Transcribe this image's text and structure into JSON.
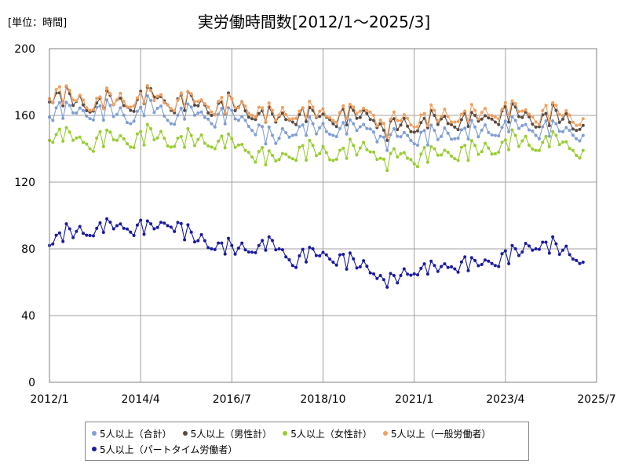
{
  "chart_data": {
    "type": "line",
    "title": "実労働時間数[2012/1～2025/3]",
    "unit_label": "[単位：時間]",
    "x_tick_labels": [
      "2012/1",
      "2014/4",
      "2016/7",
      "2018/10",
      "2021/1",
      "2023/4",
      "2025/7"
    ],
    "y_tick_labels": [
      "0",
      "40",
      "80",
      "120",
      "160",
      "200"
    ],
    "ylim": [
      0,
      200
    ],
    "x_start": "2012/1",
    "x_end": "2025/7",
    "grid": true,
    "legend_position": "bottom",
    "series": [
      {
        "name": "5人以上（合計）",
        "color": "#7f9ed4",
        "anchors": [
          [
            "2012/1",
            159
          ],
          [
            "2012/7",
            166
          ],
          [
            "2013/1",
            158
          ],
          [
            "2013/7",
            166
          ],
          [
            "2014/1",
            155
          ],
          [
            "2014/7",
            169
          ],
          [
            "2015/1",
            155
          ],
          [
            "2015/7",
            165
          ],
          [
            "2016/1",
            155
          ],
          [
            "2016/7",
            163
          ],
          [
            "2017/1",
            151
          ],
          [
            "2017/7",
            148
          ],
          [
            "2018/1",
            148
          ],
          [
            "2018/7",
            155
          ],
          [
            "2019/1",
            148
          ],
          [
            "2019/7",
            155
          ],
          [
            "2020/1",
            150
          ],
          [
            "2020/5",
            139
          ],
          [
            "2020/7",
            152
          ],
          [
            "2021/1",
            143
          ],
          [
            "2021/7",
            151
          ],
          [
            "2022/1",
            146
          ],
          [
            "2022/7",
            153
          ],
          [
            "2023/1",
            148
          ],
          [
            "2023/7",
            157
          ],
          [
            "2024/1",
            148
          ],
          [
            "2024/7",
            155
          ],
          [
            "2025/1",
            146
          ],
          [
            "2025/3",
            148
          ]
        ]
      },
      {
        "name": "5人以上（男性計）",
        "color": "#5b4a3f",
        "anchors": [
          [
            "2012/1",
            168
          ],
          [
            "2012/7",
            173
          ],
          [
            "2013/1",
            162
          ],
          [
            "2013/7",
            172
          ],
          [
            "2014/1",
            163
          ],
          [
            "2014/7",
            176
          ],
          [
            "2015/1",
            163
          ],
          [
            "2015/7",
            172
          ],
          [
            "2016/1",
            160
          ],
          [
            "2016/7",
            170
          ],
          [
            "2017/1",
            158
          ],
          [
            "2017/7",
            161
          ],
          [
            "2018/1",
            156
          ],
          [
            "2018/7",
            163
          ],
          [
            "2019/1",
            155
          ],
          [
            "2019/7",
            163
          ],
          [
            "2020/1",
            157
          ],
          [
            "2020/5",
            145
          ],
          [
            "2020/7",
            158
          ],
          [
            "2021/1",
            150
          ],
          [
            "2021/7",
            160
          ],
          [
            "2022/1",
            153
          ],
          [
            "2022/7",
            160
          ],
          [
            "2023/1",
            156
          ],
          [
            "2023/7",
            165
          ],
          [
            "2024/1",
            153
          ],
          [
            "2024/7",
            163
          ],
          [
            "2025/1",
            151
          ],
          [
            "2025/3",
            154
          ]
        ]
      },
      {
        "name": "5人以上（女性計）",
        "color": "#99cc33",
        "anchors": [
          [
            "2012/1",
            145
          ],
          [
            "2012/7",
            150
          ],
          [
            "2013/1",
            140
          ],
          [
            "2013/7",
            150
          ],
          [
            "2014/1",
            141
          ],
          [
            "2014/7",
            152
          ],
          [
            "2015/1",
            141
          ],
          [
            "2015/7",
            148
          ],
          [
            "2016/1",
            141
          ],
          [
            "2016/7",
            146
          ],
          [
            "2017/1",
            135
          ],
          [
            "2017/7",
            136
          ],
          [
            "2018/1",
            134
          ],
          [
            "2018/7",
            142
          ],
          [
            "2019/1",
            133
          ],
          [
            "2019/7",
            142
          ],
          [
            "2020/1",
            138
          ],
          [
            "2020/5",
            127
          ],
          [
            "2020/7",
            140
          ],
          [
            "2021/1",
            131
          ],
          [
            "2021/7",
            140
          ],
          [
            "2022/1",
            134
          ],
          [
            "2022/7",
            142
          ],
          [
            "2023/1",
            137
          ],
          [
            "2023/7",
            148
          ],
          [
            "2024/1",
            139
          ],
          [
            "2024/7",
            148
          ],
          [
            "2025/1",
            136
          ],
          [
            "2025/3",
            139
          ]
        ]
      },
      {
        "name": "5人以上（一般労働者）",
        "color": "#f0a060",
        "anchors": [
          [
            "2012/1",
            170
          ],
          [
            "2012/7",
            175
          ],
          [
            "2013/1",
            163
          ],
          [
            "2013/7",
            173
          ],
          [
            "2014/1",
            165
          ],
          [
            "2014/7",
            175
          ],
          [
            "2015/1",
            164
          ],
          [
            "2015/7",
            173
          ],
          [
            "2016/1",
            162
          ],
          [
            "2016/7",
            170
          ],
          [
            "2017/1",
            160
          ],
          [
            "2017/7",
            163
          ],
          [
            "2018/1",
            158
          ],
          [
            "2018/7",
            165
          ],
          [
            "2019/1",
            157
          ],
          [
            "2019/7",
            165
          ],
          [
            "2020/1",
            160
          ],
          [
            "2020/5",
            147
          ],
          [
            "2020/7",
            162
          ],
          [
            "2021/1",
            153
          ],
          [
            "2021/7",
            163
          ],
          [
            "2022/1",
            156
          ],
          [
            "2022/7",
            163
          ],
          [
            "2023/1",
            159
          ],
          [
            "2023/7",
            167
          ],
          [
            "2024/1",
            156
          ],
          [
            "2024/7",
            166
          ],
          [
            "2025/1",
            154
          ],
          [
            "2025/3",
            158
          ]
        ]
      },
      {
        "name": "5人以上（パートタイム労働者）",
        "color": "#1a1aa0",
        "anchors": [
          [
            "2012/1",
            82
          ],
          [
            "2012/7",
            92
          ],
          [
            "2013/1",
            88
          ],
          [
            "2013/7",
            96
          ],
          [
            "2014/1",
            90
          ],
          [
            "2014/7",
            95
          ],
          [
            "2015/1",
            93
          ],
          [
            "2015/7",
            90
          ],
          [
            "2016/1",
            80
          ],
          [
            "2016/7",
            82
          ],
          [
            "2017/1",
            78
          ],
          [
            "2017/7",
            85
          ],
          [
            "2018/1",
            70
          ],
          [
            "2018/7",
            80
          ],
          [
            "2019/1",
            72
          ],
          [
            "2019/7",
            74
          ],
          [
            "2020/1",
            65
          ],
          [
            "2020/5",
            57
          ],
          [
            "2020/7",
            64
          ],
          [
            "2021/1",
            65
          ],
          [
            "2021/7",
            70
          ],
          [
            "2022/1",
            68
          ],
          [
            "2022/7",
            73
          ],
          [
            "2023/1",
            70
          ],
          [
            "2023/7",
            80
          ],
          [
            "2024/1",
            80
          ],
          [
            "2024/7",
            83
          ],
          [
            "2025/1",
            73
          ],
          [
            "2025/3",
            72
          ]
        ]
      }
    ]
  }
}
